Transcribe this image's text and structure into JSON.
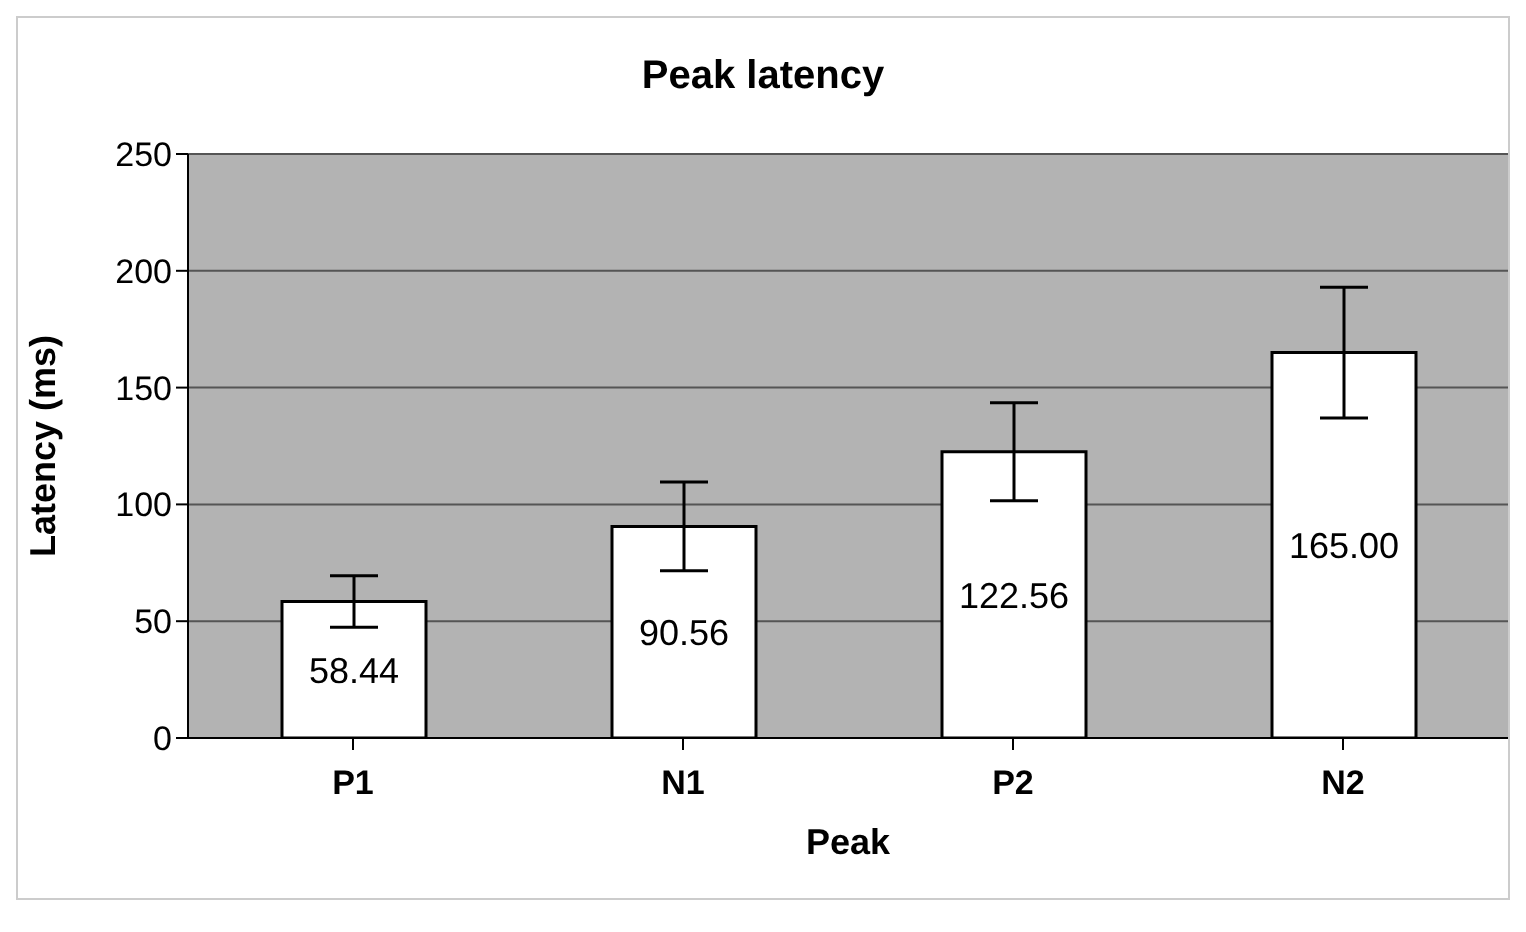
{
  "chart_data": {
    "type": "bar",
    "title": "Peak latency",
    "xlabel": "Peak",
    "ylabel": "Latency (ms)",
    "categories": [
      "P1",
      "N1",
      "P2",
      "N2"
    ],
    "values": [
      58.44,
      90.56,
      122.56,
      165.0
    ],
    "value_labels": [
      "58.44",
      "90.56",
      "122.56",
      "165.00"
    ],
    "errors": [
      11,
      19,
      21,
      28
    ],
    "color": "#ffffff",
    "ylim": [
      0,
      250
    ],
    "yticks": [
      0,
      50,
      100,
      150,
      200,
      250
    ],
    "grid": "y",
    "legend": false
  }
}
